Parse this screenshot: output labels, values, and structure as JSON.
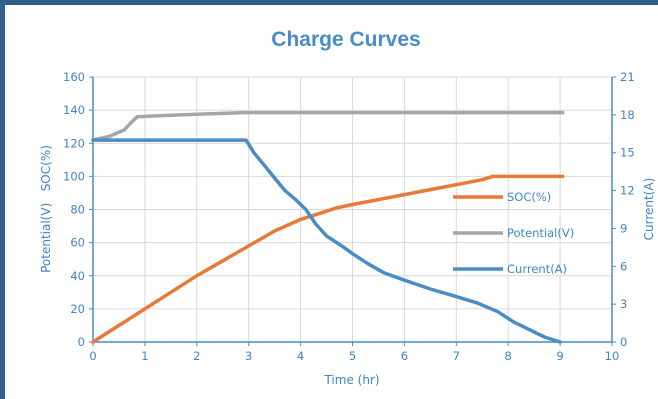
{
  "chart_data": {
    "type": "line",
    "title": "Charge Curves",
    "xlabel": "Time (hr)",
    "ylabel_left": "Potential(V)   SOC(%)",
    "ylabel_right": "Current(A)",
    "xlim": [
      0,
      10
    ],
    "ylim_left": [
      0,
      160
    ],
    "ylim_right": [
      0,
      21
    ],
    "x_ticks": [
      "0",
      "1",
      "2",
      "3",
      "4",
      "5",
      "6",
      "7",
      "8",
      "9",
      "10"
    ],
    "y_left_ticks": [
      "0",
      "20",
      "40",
      "60",
      "80",
      "100",
      "120",
      "140",
      "160"
    ],
    "y_right_ticks": [
      "0",
      "3",
      "6",
      "9",
      "12",
      "15",
      "18",
      "21"
    ],
    "grid": true,
    "legend_position": "right-center",
    "series": [
      {
        "name": "SOC(%)",
        "axis": "left",
        "color": "#e8793a",
        "x": [
          0,
          0.5,
          1,
          1.5,
          2,
          2.5,
          3,
          3.5,
          4,
          4.5,
          4.7,
          5,
          5.5,
          6,
          6.5,
          7,
          7.5,
          7.7,
          8,
          8.5,
          9.05
        ],
        "y": [
          0,
          10,
          20,
          30,
          40,
          49,
          58,
          67,
          74,
          79,
          81,
          83,
          86,
          89,
          92,
          95,
          98,
          100,
          100,
          100,
          100
        ]
      },
      {
        "name": "Potential(V)",
        "axis": "left",
        "color": "#a6a6a6",
        "x": [
          0,
          0.3,
          0.6,
          0.75,
          0.85,
          1.2,
          2,
          2.9,
          3.5,
          5,
          7,
          9.05
        ],
        "y": [
          122,
          124,
          128,
          133,
          136,
          136.5,
          137.5,
          138.5,
          138.5,
          138.5,
          138.5,
          138.5
        ]
      },
      {
        "name": "Current(A)",
        "axis": "right",
        "color": "#4a8cc4",
        "x": [
          0,
          1,
          2,
          2.95,
          3.1,
          3.3,
          3.5,
          3.7,
          3.9,
          4.1,
          4.3,
          4.5,
          4.8,
          5.0,
          5.3,
          5.6,
          6.0,
          6.5,
          7.0,
          7.4,
          7.8,
          8.1,
          8.4,
          8.7,
          9.0
        ],
        "y": [
          16,
          16,
          16,
          16,
          15,
          14,
          13,
          12,
          11.3,
          10.5,
          9.3,
          8.4,
          7.6,
          7.0,
          6.2,
          5.5,
          4.9,
          4.2,
          3.6,
          3.1,
          2.4,
          1.6,
          1.0,
          0.4,
          0
        ]
      }
    ]
  }
}
